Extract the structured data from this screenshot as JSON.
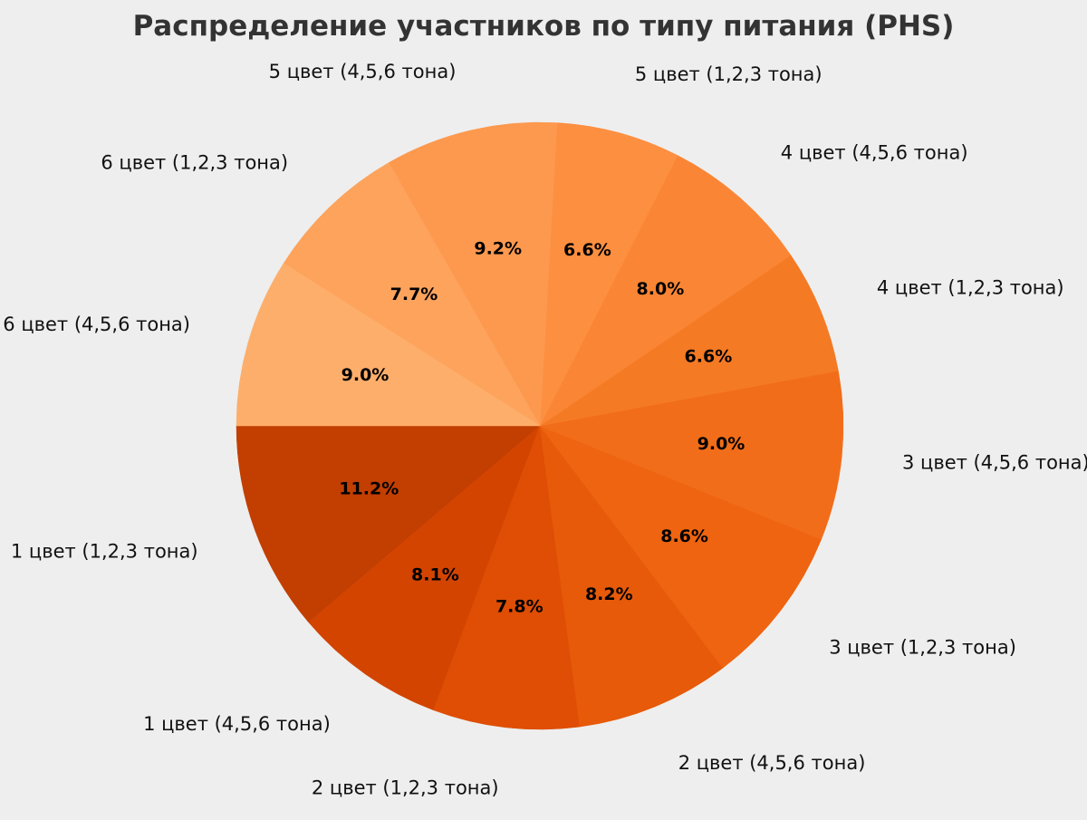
{
  "chart_data": {
    "type": "pie",
    "title": "Распределение участников по типу питания (PHS)",
    "start_angle_deg": 180,
    "direction": "counterclockwise",
    "slices": [
      {
        "label": "1 цвет (1,2,3 тона)",
        "value": 11.2,
        "pct_label": "11.2%",
        "color": "#c23e01"
      },
      {
        "label": "1 цвет (4,5,6 тона)",
        "value": 8.1,
        "pct_label": "8.1%",
        "color": "#d34401"
      },
      {
        "label": "2 цвет (1,2,3 тона)",
        "value": 7.8,
        "pct_label": "7.8%",
        "color": "#df4e04"
      },
      {
        "label": "2 цвет (4,5,6 тона)",
        "value": 8.2,
        "pct_label": "8.2%",
        "color": "#e65a0a"
      },
      {
        "label": "3 цвет (1,2,3 тона)",
        "value": 8.6,
        "pct_label": "8.6%",
        "color": "#ee6410"
      },
      {
        "label": "3 цвет (4,5,6 тона)",
        "value": 9.0,
        "pct_label": "9.0%",
        "color": "#f26d19"
      },
      {
        "label": "4 цвет (1,2,3 тона)",
        "value": 6.6,
        "pct_label": "6.6%",
        "color": "#f57a24"
      },
      {
        "label": "4 цвет (4,5,6 тона)",
        "value": 8.0,
        "pct_label": "8.0%",
        "color": "#fa8534"
      },
      {
        "label": "5 цвет (1,2,3 тона)",
        "value": 6.6,
        "pct_label": "6.6%",
        "color": "#fd8f40"
      },
      {
        "label": "5 цвет (4,5,6 тона)",
        "value": 9.2,
        "pct_label": "9.2%",
        "color": "#fd994f"
      },
      {
        "label": "6 цвет (1,2,3 тона)",
        "value": 7.7,
        "pct_label": "7.7%",
        "color": "#fda35c"
      },
      {
        "label": "6 цвет (4,5,6 тона)",
        "value": 9.0,
        "pct_label": "9.0%",
        "color": "#fdae6b"
      }
    ]
  }
}
